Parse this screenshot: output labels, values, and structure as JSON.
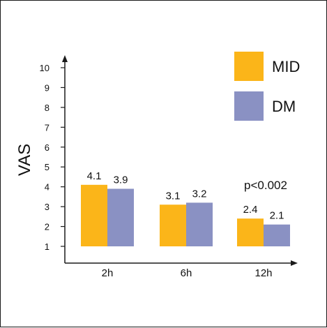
{
  "chart_data": {
    "type": "bar",
    "categories": [
      "2h",
      "6h",
      "12h"
    ],
    "series": [
      {
        "name": "MID",
        "values": [
          4.1,
          3.1,
          2.4
        ],
        "color": "#FBB519"
      },
      {
        "name": "DM",
        "values": [
          3.9,
          3.2,
          2.1
        ],
        "color": "#8A91C3"
      }
    ],
    "ylabel": "VAS",
    "xlabel": "",
    "ylim": [
      1,
      10
    ],
    "yticks": [
      1,
      2,
      3,
      4,
      5,
      6,
      7,
      8,
      9,
      10
    ],
    "annotation": "p<0.002",
    "legend_position": "top-right",
    "grid": false,
    "data_labels": [
      [
        "4.1",
        "3.1",
        "2.4"
      ],
      [
        "3.9",
        "3.2",
        "2.1"
      ]
    ]
  }
}
